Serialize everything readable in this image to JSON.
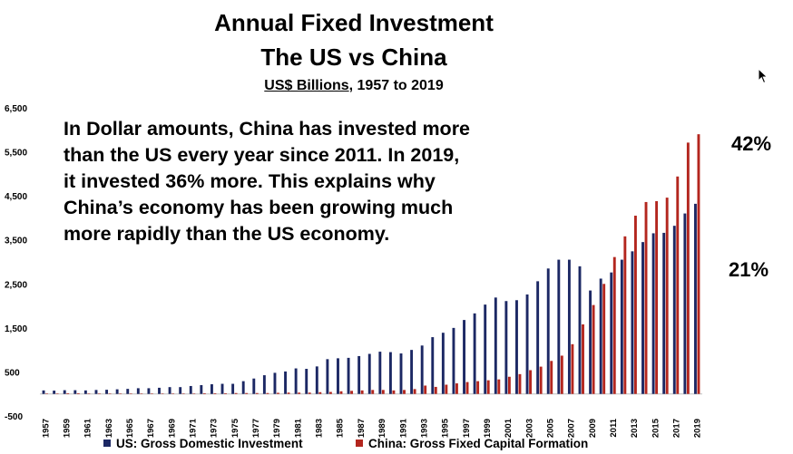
{
  "title_line1": "Annual Fixed Investment",
  "title_line2": "The US vs China",
  "subtitle_units": "US$ Billions",
  "subtitle_rest": ", 1957 to 2019",
  "annotation_lines": [
    "In Dollar amounts, China has invested more",
    "than the US every year since 2011.  In 2019,",
    "it invested 36% more.  This explains why",
    "China’s economy has been growing much",
    "more rapidly than the US economy."
  ],
  "pct_label_china": "42%",
  "pct_label_us": "21%",
  "colors": {
    "us": "#1c2864",
    "china": "#b3261e"
  },
  "chart_data": {
    "type": "bar",
    "ylim": [
      -500,
      6500
    ],
    "yticks": [
      -500,
      500,
      1500,
      2500,
      3500,
      4500,
      5500,
      6500
    ],
    "ytick_labels": [
      "-500",
      "500",
      "1,500",
      "2,500",
      "3,500",
      "4,500",
      "5,500",
      "6,500"
    ],
    "categories": [
      1957,
      1958,
      1959,
      1960,
      1961,
      1962,
      1963,
      1964,
      1965,
      1966,
      1967,
      1968,
      1969,
      1970,
      1971,
      1972,
      1973,
      1974,
      1975,
      1976,
      1977,
      1978,
      1979,
      1980,
      1981,
      1982,
      1983,
      1984,
      1985,
      1986,
      1987,
      1988,
      1989,
      1990,
      1991,
      1992,
      1993,
      1994,
      1995,
      1996,
      1997,
      1998,
      1999,
      2000,
      2001,
      2002,
      2003,
      2004,
      2005,
      2006,
      2007,
      2008,
      2009,
      2010,
      2011,
      2012,
      2013,
      2014,
      2015,
      2016,
      2017,
      2018,
      2019
    ],
    "xtick_labels": [
      "1957",
      "1959",
      "1961",
      "1963",
      "1965",
      "1967",
      "1969",
      "1971",
      "1973",
      "1975",
      "1977",
      "1979",
      "1981",
      "1983",
      "1985",
      "1987",
      "1989",
      "1991",
      "1993",
      "1995",
      "1997",
      "1999",
      "2001",
      "2003",
      "2005",
      "2007",
      "2009",
      "2011",
      "2013",
      "2015",
      "2017",
      "2019"
    ],
    "series": [
      {
        "name": "US: Gross Domestic Investment",
        "values": [
          80,
          75,
          85,
          85,
          80,
          90,
          95,
          105,
          115,
          130,
          130,
          140,
          155,
          155,
          180,
          200,
          220,
          230,
          230,
          290,
          350,
          425,
          480,
          510,
          580,
          570,
          625,
          790,
          810,
          820,
          860,
          910,
          960,
          950,
          920,
          1000,
          1100,
          1290,
          1390,
          1500,
          1680,
          1830,
          2030,
          2190,
          2110,
          2130,
          2260,
          2560,
          2850,
          3050,
          3050,
          2900,
          2350,
          2620,
          2760,
          3050,
          3240,
          3450,
          3650,
          3660,
          3820,
          4100,
          4320
        ],
        "color_key": "us"
      },
      {
        "name": "China: Gross Fixed Capital Formation",
        "values": [
          10,
          10,
          15,
          15,
          10,
          10,
          10,
          10,
          10,
          10,
          10,
          10,
          10,
          10,
          10,
          15,
          15,
          15,
          20,
          20,
          20,
          20,
          25,
          30,
          30,
          30,
          40,
          45,
          60,
          70,
          80,
          90,
          90,
          80,
          90,
          110,
          190,
          160,
          210,
          240,
          270,
          290,
          310,
          330,
          390,
          450,
          540,
          620,
          750,
          870,
          1130,
          1580,
          2020,
          2500,
          3110,
          3580,
          4050,
          4360,
          4380,
          4460,
          4940,
          5710,
          5900
        ],
        "color_key": "china"
      }
    ]
  }
}
